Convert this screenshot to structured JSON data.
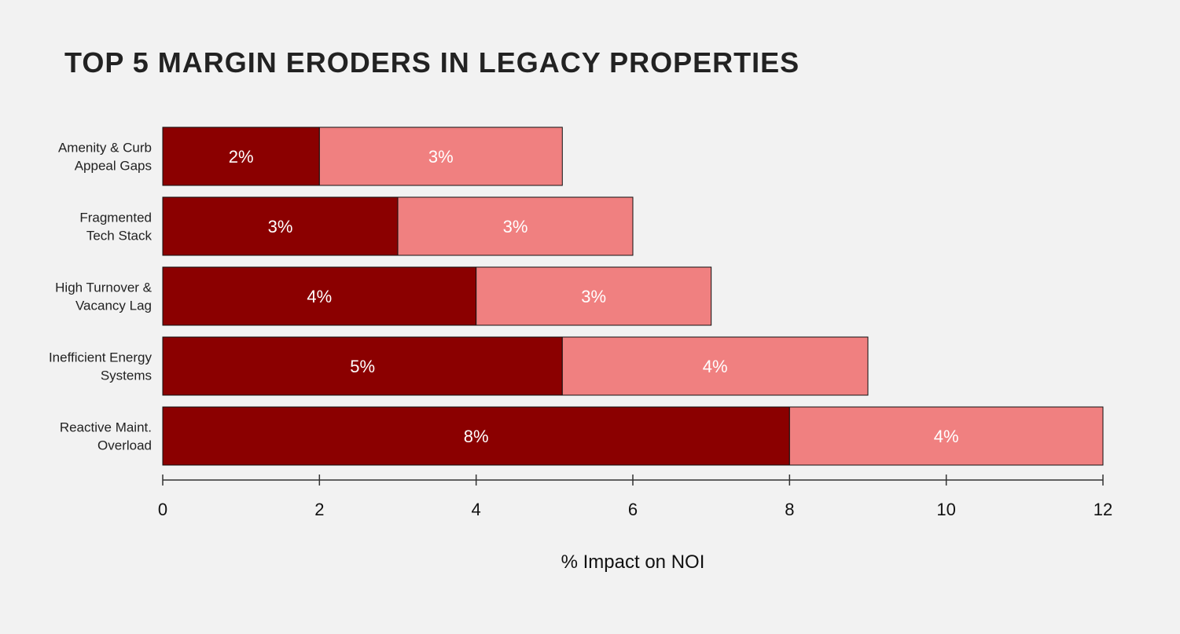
{
  "chart_data": {
    "type": "bar",
    "orientation": "horizontal",
    "stacked": true,
    "title": "TOP 5 MARGIN ERODERS IN LEGACY PROPERTIES",
    "xlabel": "% Impact on NOI",
    "ylabel": "",
    "xlim": [
      0,
      12
    ],
    "xticks": [
      "0",
      "2",
      "4",
      "6",
      "8",
      "10",
      "12"
    ],
    "grid": false,
    "categories": [
      [
        "Amenity & Curb",
        "Appeal Gaps"
      ],
      [
        "Fragmented",
        "Tech Stack"
      ],
      [
        "High Turnover &",
        "Vacancy Lag"
      ],
      [
        "Inefficient Energy",
        "Systems"
      ],
      [
        "Reactive Maint.",
        "Overload"
      ]
    ],
    "series": [
      {
        "name": "Segment 1",
        "color": "#8b0000",
        "values": [
          2,
          3,
          4,
          5.1,
          8
        ],
        "labels": [
          "2%",
          "3%",
          "4%",
          "5%",
          "8%"
        ]
      },
      {
        "name": "Segment 2",
        "color": "#f08080",
        "values": [
          3.1,
          3,
          3,
          3.9,
          4
        ],
        "labels": [
          "3%",
          "3%",
          "3%",
          "4%",
          "4%"
        ]
      }
    ]
  }
}
